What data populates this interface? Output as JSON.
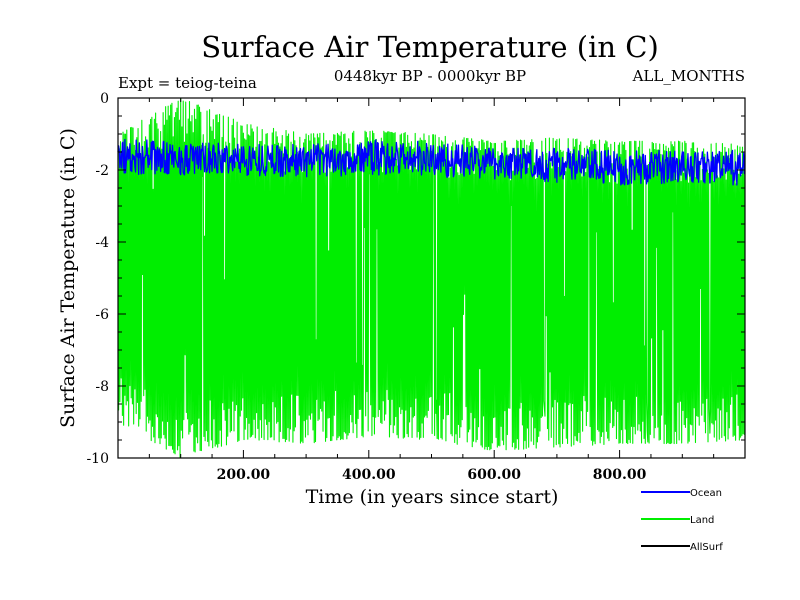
{
  "chart_data": {
    "type": "line",
    "title": "Surface Air Temperature (in C)",
    "subtitle": "0448kyr BP - 0000kyr BP",
    "experiment": "Expt = teiog-teina",
    "months": "ALL_MONTHS",
    "xlabel": "Time (in years since start)",
    "ylabel": "Surface Air Temperature (in C)",
    "xlim": [
      0,
      1000
    ],
    "ylim": [
      -10,
      0
    ],
    "xticks": [
      200,
      400,
      600,
      800
    ],
    "xtick_labels": [
      "200.00",
      "400.00",
      "600.00",
      "800.00"
    ],
    "yticks": [
      0,
      -2,
      -4,
      -6,
      -8,
      -10
    ],
    "ytick_labels": [
      "0",
      "-2",
      "-4",
      "-6",
      "-8",
      "-10"
    ],
    "series": [
      {
        "name": "Ocean",
        "color": "#0000ff",
        "x_step": 100,
        "values_x": [
          0,
          100,
          200,
          300,
          400,
          500,
          600,
          700,
          800,
          900,
          1000
        ],
        "mean": [
          -1.6,
          -1.7,
          -1.7,
          -1.75,
          -1.65,
          -1.7,
          -1.8,
          -1.85,
          -1.95,
          -1.9,
          -1.95
        ],
        "min": [
          -2.1,
          -2.2,
          -2.2,
          -2.3,
          -2.2,
          -2.3,
          -2.4,
          -2.5,
          -2.5,
          -2.4,
          -2.5
        ],
        "max": [
          -0.9,
          -1.2,
          -1.2,
          -1.3,
          -1.1,
          -1.2,
          -1.4,
          -1.4,
          -1.4,
          -1.4,
          -1.4
        ]
      },
      {
        "name": "Land",
        "color": "#00ee00",
        "values_x": [
          0,
          100,
          200,
          300,
          400,
          500,
          600,
          700,
          800,
          900,
          1000
        ],
        "mean": [
          -5.0,
          -5.0,
          -5.1,
          -5.1,
          -5.0,
          -5.1,
          -5.2,
          -5.2,
          -5.3,
          -5.2,
          -5.3
        ],
        "min": [
          -9.0,
          -10.0,
          -9.5,
          -9.6,
          -9.4,
          -9.5,
          -9.8,
          -9.7,
          -9.6,
          -9.6,
          -9.5
        ],
        "max": [
          -1.0,
          0.0,
          -0.7,
          -1.0,
          -0.9,
          -1.0,
          -1.2,
          -1.1,
          -1.2,
          -1.2,
          -1.3
        ]
      },
      {
        "name": "AllSurf",
        "color": "#000000",
        "values_x": [],
        "mean": []
      }
    ],
    "legend": [
      "Ocean",
      "Land",
      "AllSurf"
    ],
    "legend_position": "bottom-right",
    "grid": false
  }
}
